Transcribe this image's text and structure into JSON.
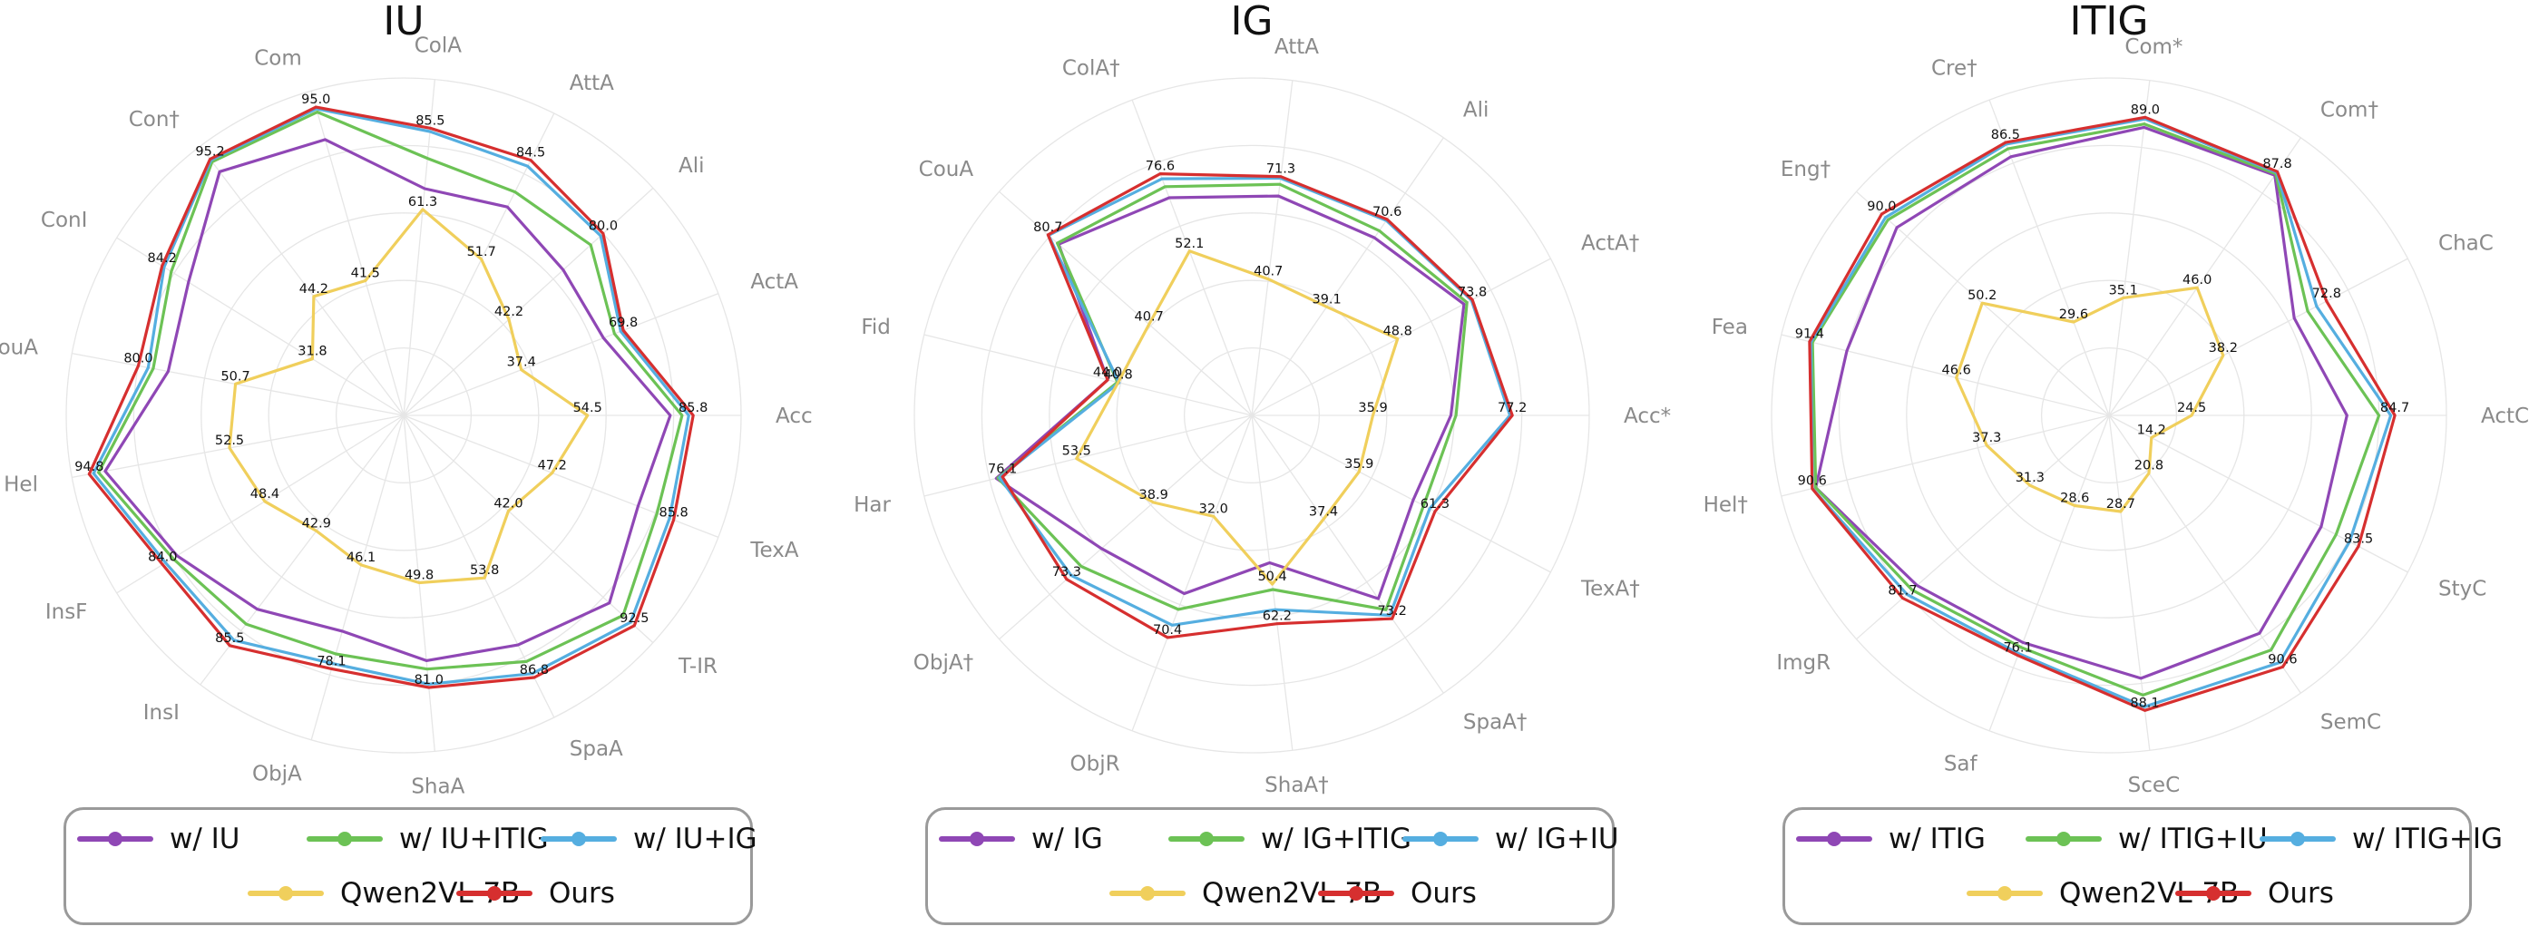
{
  "colors": {
    "purple": "#8f47b5",
    "green": "#6cc255",
    "blue": "#55aee0",
    "yellow": "#f0cf5c",
    "red": "#d62f2f",
    "grid": "#e6e6e6",
    "legend_border": "#9a9a9a"
  },
  "chart_data": [
    {
      "type": "radar",
      "title": "IU",
      "axes": [
        "Acc",
        "ActA",
        "Ali",
        "AttA",
        "ColA",
        "Com",
        "Con†",
        "ConI",
        "CouA",
        "Hel",
        "InsF",
        "InsI",
        "ObjA",
        "ShaA",
        "SpaA",
        "T-IR",
        "TexA"
      ],
      "rmax": 100,
      "grid": true,
      "series": [
        {
          "name": "w/ IU",
          "color_key": "purple",
          "values": [
            79.0,
            63.5,
            64.0,
            69.0,
            67.5,
            85.0,
            90.5,
            75.0,
            71.0,
            90.0,
            79.0,
            72.0,
            66.5,
            73.0,
            76.0,
            82.5,
            74.5
          ]
        },
        {
          "name": "w/ IU+ITIG",
          "color_key": "green",
          "values": [
            82.5,
            67.0,
            75.0,
            74.0,
            76.5,
            93.5,
            94.2,
            81.0,
            75.5,
            92.0,
            80.5,
            77.5,
            73.5,
            75.5,
            81.5,
            88.0,
            80.5
          ]
        },
        {
          "name": "w/ IU+IG",
          "color_key": "blue",
          "values": [
            84.5,
            69.0,
            79.0,
            82.5,
            84.5,
            94.5,
            94.8,
            83.5,
            77.0,
            93.5,
            83.0,
            83.5,
            76.5,
            80.0,
            85.5,
            91.0,
            84.5
          ]
        },
        {
          "name": "Qwen2VL-7B",
          "color_key": "yellow",
          "values": [
            54.5,
            37.4,
            42.2,
            51.7,
            61.3,
            41.5,
            44.2,
            31.8,
            50.7,
            52.5,
            48.4,
            42.9,
            46.1,
            49.8,
            53.8,
            42.0,
            47.2
          ],
          "labels": true
        },
        {
          "name": "Ours",
          "color_key": "red",
          "values": [
            85.8,
            69.8,
            80.0,
            84.5,
            85.5,
            95.0,
            95.2,
            84.2,
            80.0,
            94.8,
            84.0,
            85.5,
            78.1,
            81.0,
            86.8,
            92.5,
            85.8
          ],
          "labels": true
        }
      ],
      "legend": [
        [
          "w/ IU",
          "w/ IU+ITIG",
          "w/ IU+IG"
        ],
        [
          "Qwen2VL-7B",
          "Ours"
        ]
      ]
    },
    {
      "type": "radar",
      "title": "IG",
      "axes": [
        "Acc*",
        "ActA†",
        "Ali",
        "AttA",
        "ColA†",
        "CouA",
        "Fid",
        "Har",
        "ObjA†",
        "ObjR",
        "ShaA†",
        "SpaA†",
        "TexA†"
      ],
      "rmax": 100,
      "grid": true,
      "series": [
        {
          "name": "w/ IG",
          "color_key": "purple",
          "values": [
            59.0,
            71.0,
            64.0,
            65.5,
            69.0,
            76.5,
            44.0,
            78.0,
            59.5,
            56.5,
            44.0,
            66.0,
            54.0
          ]
        },
        {
          "name": "w/ IG+ITIG",
          "color_key": "green",
          "values": [
            60.5,
            72.0,
            66.5,
            69.0,
            72.5,
            77.0,
            41.0,
            77.5,
            67.5,
            61.5,
            52.0,
            70.0,
            57.5
          ]
        },
        {
          "name": "w/ IG+IU",
          "color_key": "blue",
          "values": [
            76.5,
            73.5,
            70.2,
            70.8,
            75.0,
            80.5,
            40.5,
            77.0,
            71.5,
            66.5,
            58.0,
            72.0,
            59.5
          ]
        },
        {
          "name": "Qwen2VL-7B",
          "color_key": "yellow",
          "values": [
            35.9,
            48.8,
            39.1,
            40.7,
            52.1,
            40.7,
            40.8,
            53.5,
            38.9,
            32.0,
            50.4,
            37.4,
            35.9
          ],
          "labels": true
        },
        {
          "name": "Ours",
          "color_key": "red",
          "values": [
            77.2,
            73.8,
            70.6,
            71.3,
            76.6,
            80.7,
            44.0,
            76.1,
            73.3,
            70.4,
            62.2,
            73.2,
            61.3
          ],
          "labels": true
        }
      ],
      "legend": [
        [
          "w/ IG",
          "w/ IG+ITIG",
          "w/ IG+IU"
        ],
        [
          "Qwen2VL-7B",
          "Ours"
        ]
      ]
    },
    {
      "type": "radar",
      "title": "ITIG",
      "axes": [
        "ActC",
        "ChaC",
        "Com†",
        "Com*",
        "Cre†",
        "Eng†",
        "Fea",
        "Hel†",
        "ImgR",
        "Saf",
        "SceC",
        "SemC",
        "StyC"
      ],
      "rmax": 100,
      "grid": true,
      "series": [
        {
          "name": "w/ ITIG",
          "color_key": "purple",
          "values": [
            70.5,
            62.0,
            86.5,
            86.0,
            82.0,
            84.0,
            80.0,
            89.5,
            76.0,
            72.0,
            78.5,
            78.5,
            71.0
          ]
        },
        {
          "name": "w/ ITIG+IU",
          "color_key": "green",
          "values": [
            80.0,
            66.5,
            87.0,
            87.0,
            84.5,
            87.5,
            90.5,
            89.5,
            78.0,
            73.5,
            83.5,
            84.5,
            76.0
          ]
        },
        {
          "name": "w/ ITIG+IG",
          "color_key": "blue",
          "values": [
            83.5,
            69.5,
            87.5,
            88.5,
            86.0,
            88.5,
            91.0,
            90.5,
            80.0,
            75.5,
            87.0,
            89.0,
            80.5
          ]
        },
        {
          "name": "Qwen2VL-7B",
          "color_key": "yellow",
          "values": [
            24.5,
            38.2,
            46.0,
            35.1,
            29.6,
            50.2,
            46.6,
            37.3,
            31.3,
            28.6,
            28.7,
            20.8,
            14.2
          ],
          "labels": true
        },
        {
          "name": "Ours",
          "color_key": "red",
          "values": [
            84.7,
            72.8,
            87.8,
            89.0,
            86.5,
            90.0,
            91.4,
            90.6,
            81.7,
            76.1,
            88.1,
            90.6,
            83.5
          ],
          "labels": true
        }
      ],
      "legend": [
        [
          "w/ ITIG",
          "w/ ITIG+IU",
          "w/ ITIG+IG"
        ],
        [
          "Qwen2VL-7B",
          "Ours"
        ]
      ]
    }
  ]
}
